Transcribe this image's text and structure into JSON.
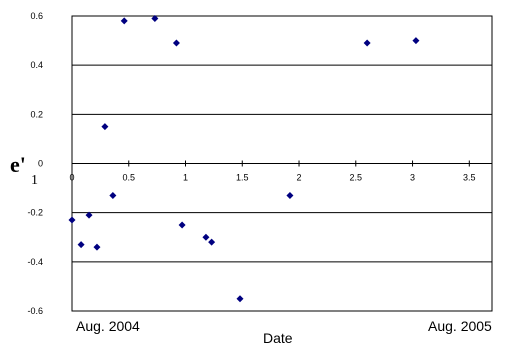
{
  "chart_data": {
    "type": "scatter",
    "title": "",
    "xlabel": "Date",
    "ylabel": "e'1",
    "ylabel_main": "e'",
    "ylabel_sub": "1",
    "date_start": "Aug. 2004",
    "date_end": "Aug. 2005",
    "xlim": [
      0,
      3.7
    ],
    "ylim": [
      -0.6,
      0.6
    ],
    "x_ticks": [
      0,
      0.5,
      1,
      1.5,
      2,
      2.5,
      3,
      3.5
    ],
    "x_tick_labels": [
      "0",
      "0.5",
      "1",
      "1.5",
      "2",
      "2.5",
      "3",
      "3.5"
    ],
    "y_ticks": [
      -0.6,
      -0.4,
      -0.2,
      0,
      0.2,
      0.4,
      0.6
    ],
    "y_tick_labels": [
      "-0.6",
      "-0.4",
      "-0.2",
      "0",
      "0.2",
      "0.4",
      "0.6"
    ],
    "grid": "horizontal",
    "legend": "none",
    "marker": "diamond",
    "marker_color": "#000080",
    "series": [
      {
        "points": [
          {
            "x": 0.0,
            "y": -0.23
          },
          {
            "x": 0.08,
            "y": -0.33
          },
          {
            "x": 0.15,
            "y": -0.21
          },
          {
            "x": 0.22,
            "y": -0.34
          },
          {
            "x": 0.29,
            "y": 0.15
          },
          {
            "x": 0.36,
            "y": -0.13
          },
          {
            "x": 0.46,
            "y": 0.58
          },
          {
            "x": 0.73,
            "y": 0.59
          },
          {
            "x": 0.92,
            "y": 0.49
          },
          {
            "x": 0.97,
            "y": -0.25
          },
          {
            "x": 1.18,
            "y": -0.3
          },
          {
            "x": 1.23,
            "y": -0.32
          },
          {
            "x": 1.48,
            "y": -0.55
          },
          {
            "x": 1.92,
            "y": -0.13
          },
          {
            "x": 2.6,
            "y": 0.49
          },
          {
            "x": 3.03,
            "y": 0.5
          }
        ]
      }
    ]
  }
}
